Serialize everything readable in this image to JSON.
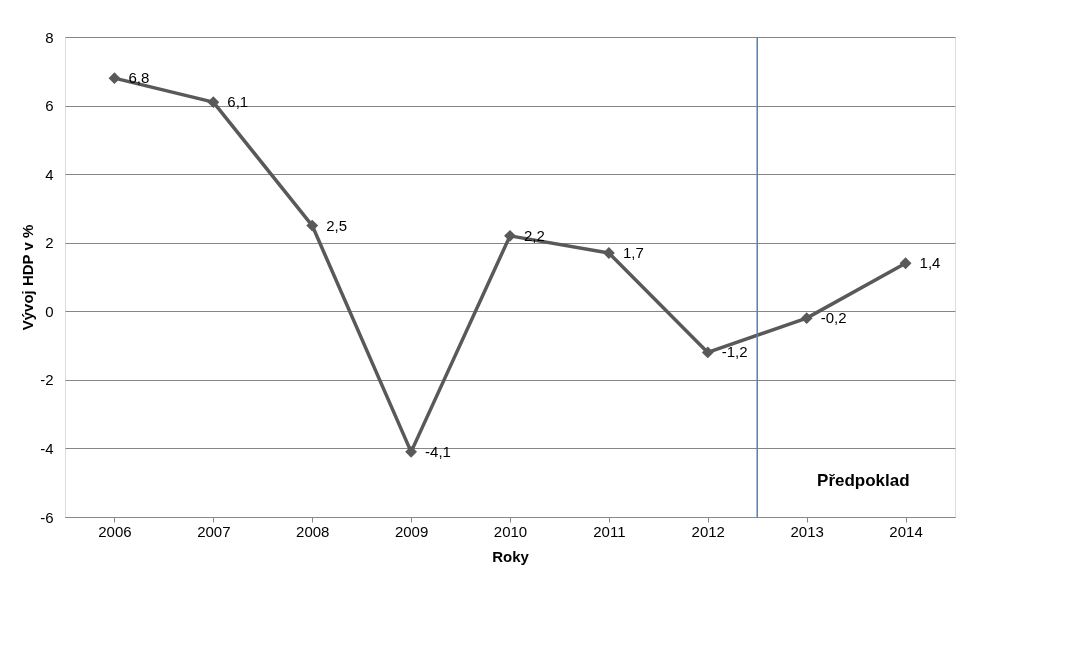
{
  "chart_data": {
    "type": "line",
    "xlabel": "Roky",
    "ylabel": "Vývoj HDP v %",
    "x": [
      2006,
      2007,
      2008,
      2009,
      2010,
      2011,
      2012,
      2013,
      2014
    ],
    "xlim": [
      2005.5,
      2014.5
    ],
    "xticks": [
      2006,
      2007,
      2008,
      2009,
      2010,
      2011,
      2012,
      2013,
      2014
    ],
    "ylim": [
      -6,
      8
    ],
    "yticks": [
      -6,
      -4,
      -2,
      0,
      2,
      4,
      6,
      8
    ],
    "series": [
      {
        "color": "#595959",
        "values": [
          6.8,
          6.1,
          2.5,
          -4.1,
          2.2,
          1.7,
          -1.2,
          -0.2,
          1.4
        ],
        "value_labels": [
          "6,8",
          "6,1",
          "2,5",
          "-4,1",
          "2,2",
          "1,7",
          "-1,2",
          "-0,2",
          "1,4"
        ]
      }
    ],
    "ref_lines": [
      {
        "axis": "x",
        "value": 2012.5,
        "color": "#4f81bd"
      }
    ],
    "annotations": [
      "Předpoklad"
    ],
    "grid": "y",
    "marker": "diamond",
    "line_style": "solid"
  }
}
